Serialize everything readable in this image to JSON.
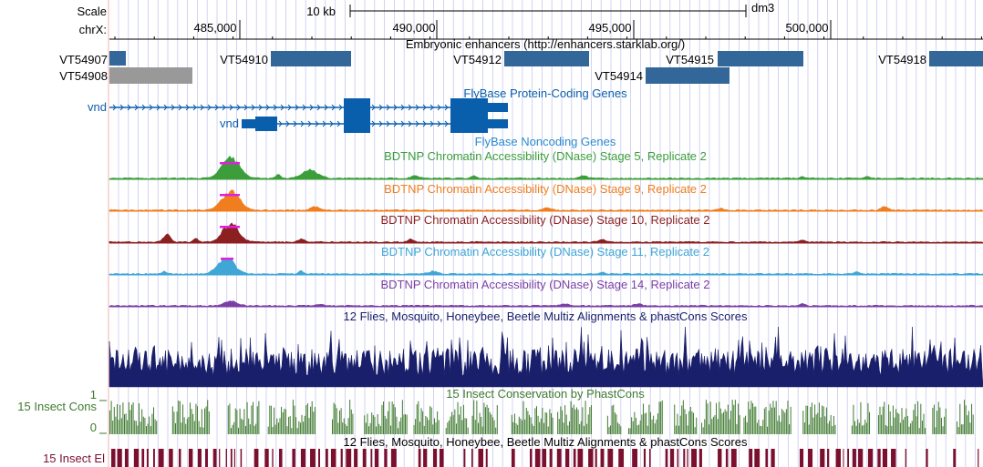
{
  "ruler": {
    "scale_label": "Scale",
    "chrom_label": "chrX:",
    "scale_bar_label": "10 kb",
    "assembly": "dm3",
    "positions": [
      "485,000",
      "490,000",
      "495,000",
      "500,000"
    ]
  },
  "tracks": {
    "enhancers": {
      "title": "Embryonic enhancers (http://enhancers.starklab.org/)",
      "items": [
        {
          "name": "VT54907",
          "color": "#336699"
        },
        {
          "name": "VT54908",
          "color": "#999999"
        },
        {
          "name": "VT54910",
          "color": "#336699"
        },
        {
          "name": "VT54912",
          "color": "#336699"
        },
        {
          "name": "VT54914",
          "color": "#336699"
        },
        {
          "name": "VT54915",
          "color": "#336699"
        },
        {
          "name": "VT54918",
          "color": "#336699"
        }
      ]
    },
    "protein_genes": {
      "title": "FlyBase Protein-Coding Genes",
      "gene_names": [
        "vnd",
        "vnd"
      ],
      "color": "#0A5FAD"
    },
    "noncoding_genes": {
      "title": "FlyBase Noncoding Genes",
      "color": "#2B8BD0"
    },
    "dnase": [
      {
        "title": "BDTNP Chromatin Accessibility (DNase) Stage 5, Replicate 2",
        "color": "#3B9E3B"
      },
      {
        "title": "BDTNP Chromatin Accessibility (DNase) Stage 9, Replicate 2",
        "color": "#F07E1E"
      },
      {
        "title": "BDTNP Chromatin Accessibility (DNase) Stage 10, Replicate 2",
        "color": "#8C1F1F"
      },
      {
        "title": "BDTNP Chromatin Accessibility (DNase) Stage 11, Replicate 2",
        "color": "#3FA6D6"
      },
      {
        "title": "BDTNP Chromatin Accessibility (DNase) Stage 14, Replicate 2",
        "color": "#7B3FA6"
      }
    ],
    "multiz": {
      "title": "12 Flies, Mosquito, Honeybee, Beetle Multiz Alignments & phastCons Scores",
      "color": "#1A1F6B"
    },
    "phastcons": {
      "title": "15 Insect Conservation by PhastCons",
      "side_label": "15 Insect Cons",
      "axis_max": "1",
      "axis_min": "0",
      "color": "#3E7A2E"
    },
    "elements": {
      "title": "12 Flies, Mosquito, Honeybee, Beetle Multiz Alignments & phastCons Scores",
      "side_label": "15 Insect El",
      "color": "#7A0F2E"
    }
  },
  "colors": {
    "grid": "#C8C8F0",
    "left_border": "#F2B0B0",
    "peak_saturation": "#E020E0"
  }
}
